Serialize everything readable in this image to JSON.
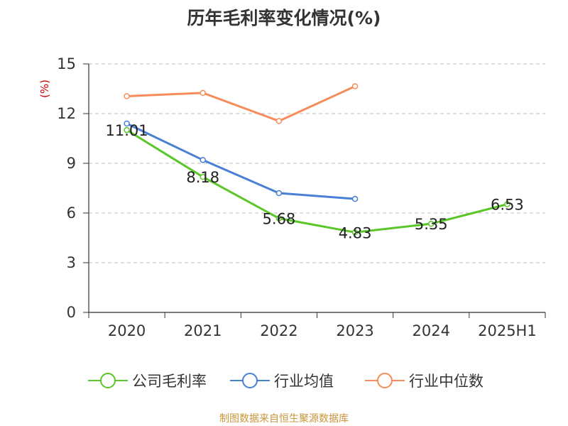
{
  "title": "历年毛利率变化情况(%)",
  "source": "制图数据来自恒生聚源数据库",
  "chart_data": {
    "type": "line",
    "title": "历年毛利率变化情况(%)",
    "ylabel": "(%)",
    "xlabel": "",
    "categories": [
      "2020",
      "2021",
      "2022",
      "2023",
      "2024",
      "2025H1"
    ],
    "ylim": [
      0,
      15
    ],
    "yticks": [
      0,
      3,
      6,
      9,
      12,
      15
    ],
    "grid": true,
    "legend_position": "bottom",
    "series": [
      {
        "name": "公司毛利率",
        "color": "#5ac628",
        "values": [
          11.01,
          8.18,
          5.68,
          4.83,
          5.35,
          6.53
        ],
        "labels": [
          "11.01",
          "8.18",
          "5.68",
          "4.83",
          "5.35",
          "6.53"
        ]
      },
      {
        "name": "行业均值",
        "color": "#4a7fd6",
        "values": [
          11.4,
          9.2,
          7.2,
          6.85,
          null,
          null
        ]
      },
      {
        "name": "行业中位数",
        "color": "#f58d5a",
        "values": [
          13.05,
          13.25,
          11.55,
          13.65,
          null,
          null
        ]
      }
    ]
  }
}
